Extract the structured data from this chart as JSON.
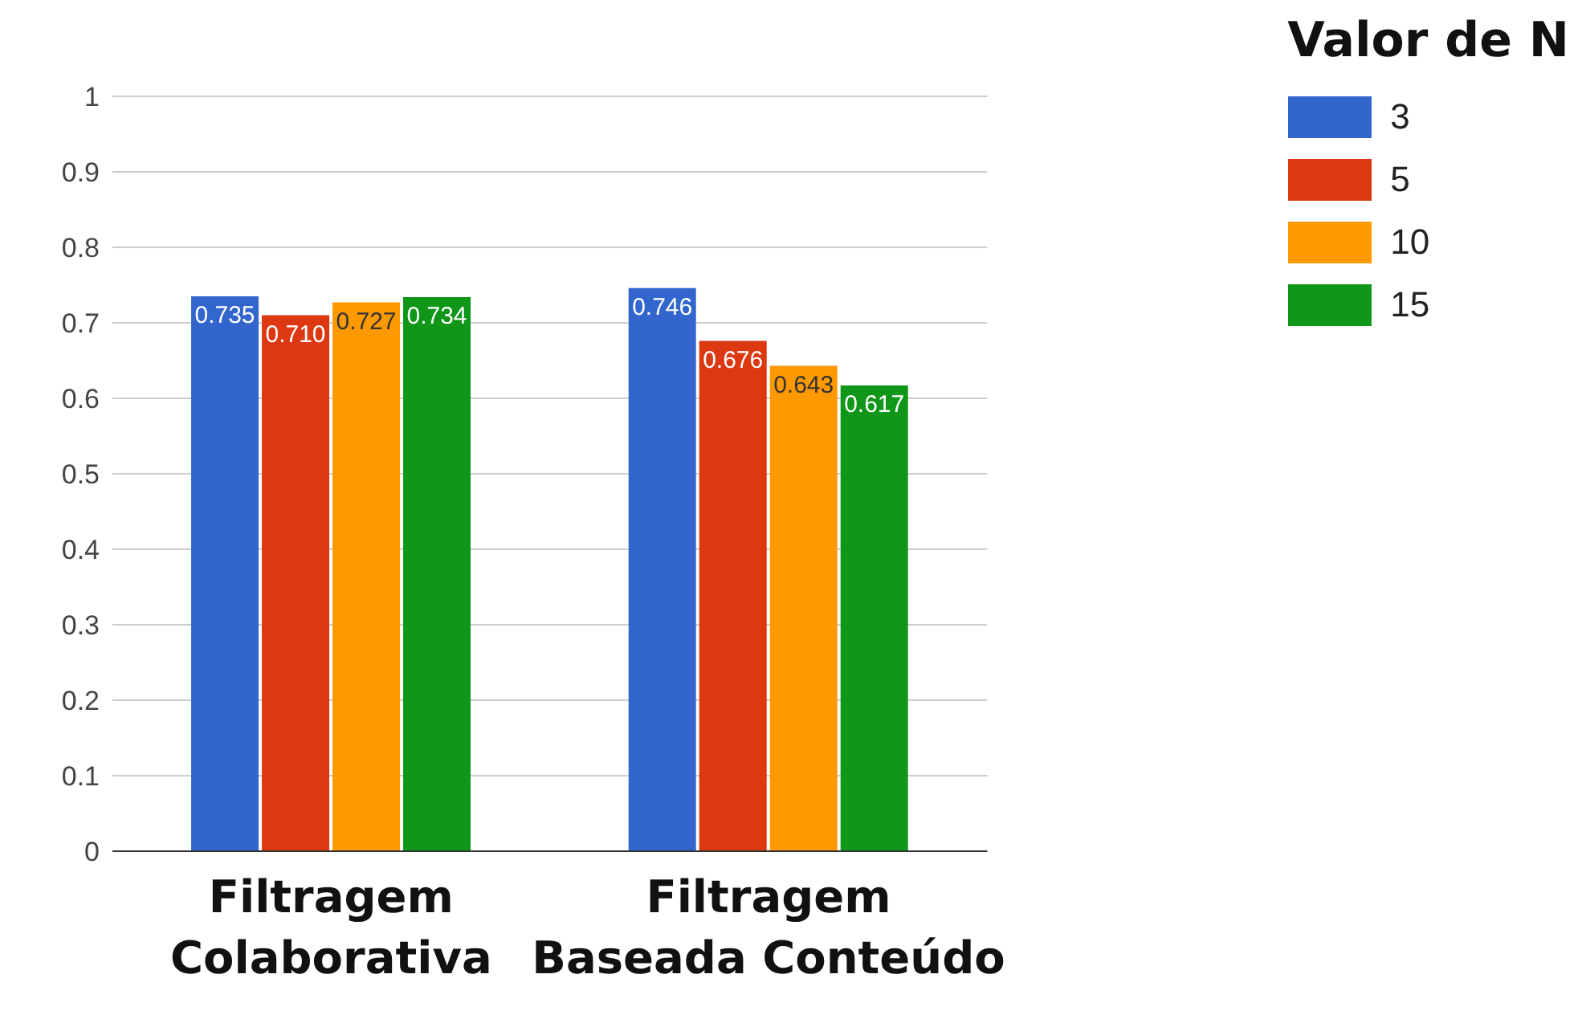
{
  "chart_data": {
    "type": "bar",
    "categories": [
      "Filtragem Colaborativa",
      "Filtragem Baseada Conteúdo"
    ],
    "series": [
      {
        "name": "3",
        "color": "#3366cc",
        "values": [
          0.735,
          0.746
        ],
        "value_labels": [
          "0.735",
          "0.746"
        ]
      },
      {
        "name": "5",
        "color": "#dc3912",
        "values": [
          0.71,
          0.676
        ],
        "value_labels": [
          "0.710",
          "0.676"
        ]
      },
      {
        "name": "10",
        "color": "#ff9900",
        "values": [
          0.727,
          0.643
        ],
        "value_labels": [
          "0.727",
          "0.643"
        ]
      },
      {
        "name": "15",
        "color": "#109618",
        "values": [
          0.734,
          0.617
        ],
        "value_labels": [
          "0.734",
          "0.617"
        ]
      }
    ],
    "ylim": [
      0,
      1
    ],
    "yticks": [
      0,
      0.1,
      0.2,
      0.3,
      0.4,
      0.5,
      0.6,
      0.7,
      0.8,
      0.9,
      1
    ],
    "grid": "y",
    "legend": "top right",
    "legend_title": "Valor de N"
  }
}
